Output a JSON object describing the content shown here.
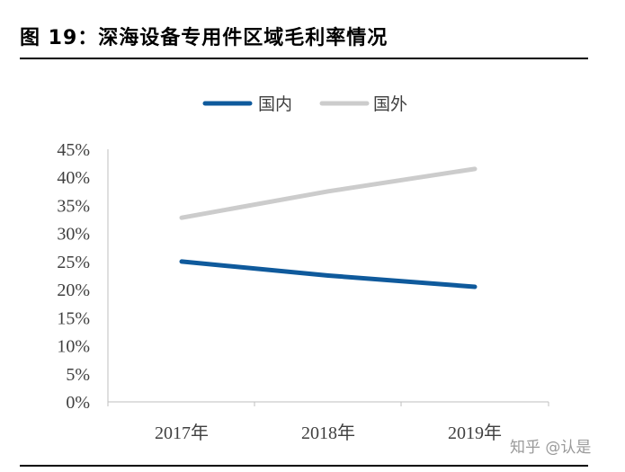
{
  "header": {
    "title": "图 19：深海设备专用件区域毛利率情况"
  },
  "chart_data": {
    "type": "line",
    "categories": [
      "2017年",
      "2018年",
      "2019年"
    ],
    "series": [
      {
        "name": "国内",
        "color": "#0f5a9c",
        "values": [
          25.0,
          22.5,
          20.5
        ]
      },
      {
        "name": "国外",
        "color": "#cccccc",
        "values": [
          32.8,
          37.5,
          41.5
        ]
      }
    ],
    "yticks": [
      "0%",
      "5%",
      "10%",
      "15%",
      "20%",
      "25%",
      "30%",
      "35%",
      "40%",
      "45%"
    ],
    "ylim": [
      0,
      45
    ],
    "legend": "top",
    "grid": false
  },
  "watermark": "知乎 @认是"
}
